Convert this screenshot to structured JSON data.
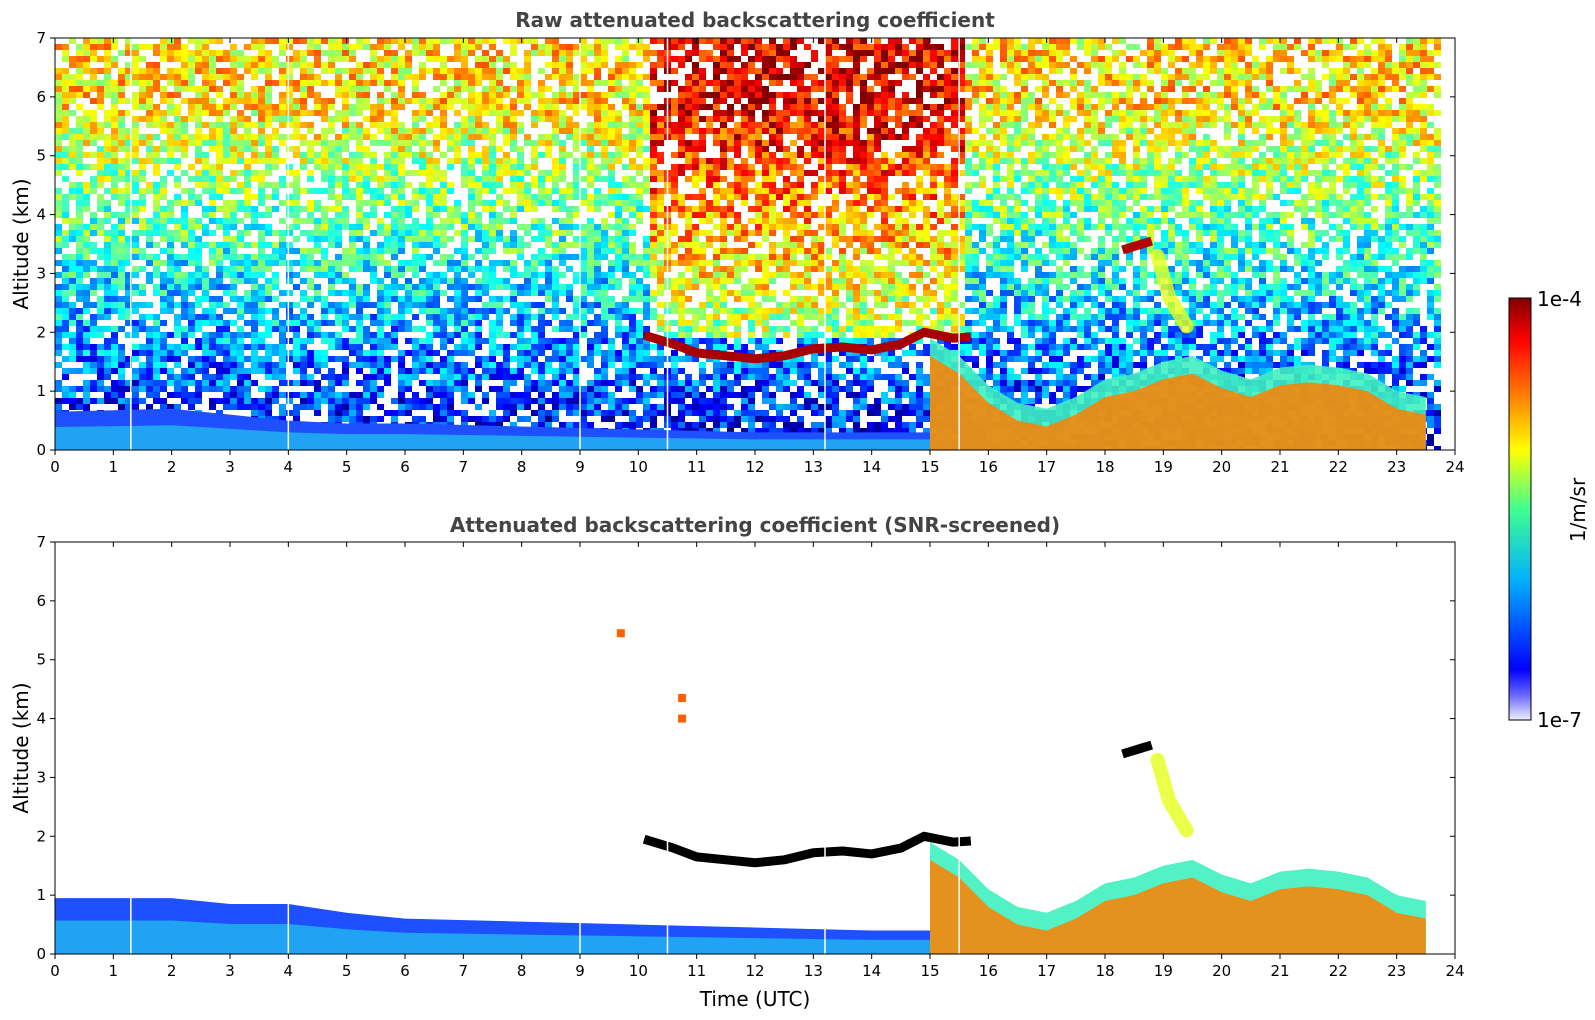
{
  "chart_data": [
    {
      "type": "heatmap",
      "title": "Raw attenuated backscattering coefficient",
      "xlabel": "",
      "ylabel": "Altitude (km)",
      "xlim": [
        0,
        24
      ],
      "ylim": [
        0,
        7
      ],
      "x_ticks": [
        "0",
        "1",
        "2",
        "3",
        "4",
        "5",
        "6",
        "7",
        "8",
        "9",
        "10",
        "11",
        "12",
        "13",
        "14",
        "15",
        "16",
        "17",
        "18",
        "19",
        "20",
        "21",
        "22",
        "23",
        "24"
      ],
      "y_ticks": [
        "0",
        "1",
        "2",
        "3",
        "4",
        "5",
        "6",
        "7"
      ],
      "data_end_time": 23.65,
      "screened": false,
      "noise_top_level": 0.55,
      "boundary_layer": [
        [
          0,
          0.65
        ],
        [
          2,
          0.7
        ],
        [
          3,
          0.6
        ],
        [
          4,
          0.5
        ],
        [
          5,
          0.45
        ],
        [
          6,
          0.45
        ],
        [
          8,
          0.4
        ],
        [
          10,
          0.35
        ],
        [
          12,
          0.3
        ],
        [
          14,
          0.3
        ],
        [
          15,
          0.3
        ]
      ],
      "gap_lines_time": [
        1.3,
        4.0,
        9.0,
        10.5,
        13.2,
        15.5
      ],
      "features": [
        {
          "kind": "cloud-layer",
          "path": [
            [
              10.1,
              1.95
            ],
            [
              10.6,
              1.8
            ],
            [
              11,
              1.65
            ],
            [
              11.5,
              1.6
            ],
            [
              12,
              1.55
            ],
            [
              12.5,
              1.6
            ],
            [
              13,
              1.72
            ],
            [
              13.5,
              1.75
            ],
            [
              14,
              1.7
            ],
            [
              14.5,
              1.8
            ],
            [
              14.9,
              2.0
            ],
            [
              15.4,
              1.9
            ],
            [
              15.7,
              1.92
            ]
          ],
          "level": 0.96
        },
        {
          "kind": "cloud-layer",
          "path": [
            [
              18.3,
              3.4
            ],
            [
              18.8,
              3.55
            ]
          ],
          "level": 0.95
        },
        {
          "kind": "aerosol-plume",
          "path": [
            [
              15.0,
              1.6
            ],
            [
              15.5,
              1.3
            ],
            [
              16.0,
              0.8
            ],
            [
              16.5,
              0.5
            ],
            [
              17.0,
              0.4
            ],
            [
              17.5,
              0.6
            ],
            [
              18.0,
              0.9
            ],
            [
              18.5,
              1.0
            ],
            [
              19.0,
              1.2
            ],
            [
              19.5,
              1.3
            ],
            [
              20.0,
              1.05
            ],
            [
              20.5,
              0.9
            ],
            [
              21.0,
              1.1
            ],
            [
              21.5,
              1.15
            ],
            [
              22.0,
              1.1
            ],
            [
              22.5,
              1.0
            ],
            [
              23.0,
              0.7
            ],
            [
              23.5,
              0.6
            ]
          ],
          "level": 0.75
        },
        {
          "kind": "plume",
          "path": [
            [
              18.9,
              3.3
            ],
            [
              19.1,
              2.6
            ],
            [
              19.4,
              2.1
            ]
          ],
          "level": 0.6
        }
      ]
    },
    {
      "type": "heatmap",
      "title": "Attenuated backscattering coefficient (SNR-screened)",
      "xlabel": "Time (UTC)",
      "ylabel": "Altitude (km)",
      "xlim": [
        0,
        24
      ],
      "ylim": [
        0,
        7
      ],
      "x_ticks": [
        "0",
        "1",
        "2",
        "3",
        "4",
        "5",
        "6",
        "7",
        "8",
        "9",
        "10",
        "11",
        "12",
        "13",
        "14",
        "15",
        "16",
        "17",
        "18",
        "19",
        "20",
        "21",
        "22",
        "23",
        "24"
      ],
      "y_ticks": [
        "0",
        "1",
        "2",
        "3",
        "4",
        "5",
        "6",
        "7"
      ],
      "data_end_time": 23.65,
      "screened": true,
      "noise_top_level": 0,
      "boundary_layer": [
        [
          0,
          0.95
        ],
        [
          2,
          0.95
        ],
        [
          3,
          0.85
        ],
        [
          4,
          0.85
        ],
        [
          5,
          0.7
        ],
        [
          6,
          0.6
        ],
        [
          8,
          0.55
        ],
        [
          10,
          0.5
        ],
        [
          12,
          0.45
        ],
        [
          14,
          0.4
        ],
        [
          15,
          0.4
        ]
      ],
      "gap_lines_time": [
        1.3,
        4.0,
        9.0,
        10.5,
        13.2,
        15.5
      ],
      "features": [
        {
          "kind": "cloud-layer",
          "path": [
            [
              10.1,
              1.95
            ],
            [
              10.6,
              1.8
            ],
            [
              11,
              1.65
            ],
            [
              11.5,
              1.6
            ],
            [
              12,
              1.55
            ],
            [
              12.5,
              1.6
            ],
            [
              13,
              1.72
            ],
            [
              13.5,
              1.75
            ],
            [
              14,
              1.7
            ],
            [
              14.5,
              1.8
            ],
            [
              14.9,
              2.0
            ],
            [
              15.4,
              1.9
            ],
            [
              15.7,
              1.92
            ]
          ],
          "level": 1.0
        },
        {
          "kind": "cloud-layer",
          "path": [
            [
              18.3,
              3.4
            ],
            [
              18.8,
              3.55
            ]
          ],
          "level": 1.0
        },
        {
          "kind": "aerosol-plume",
          "path": [
            [
              15.0,
              1.6
            ],
            [
              15.5,
              1.3
            ],
            [
              16.0,
              0.8
            ],
            [
              16.5,
              0.5
            ],
            [
              17.0,
              0.4
            ],
            [
              17.5,
              0.6
            ],
            [
              18.0,
              0.9
            ],
            [
              18.5,
              1.0
            ],
            [
              19.0,
              1.2
            ],
            [
              19.5,
              1.3
            ],
            [
              20.0,
              1.05
            ],
            [
              20.5,
              0.9
            ],
            [
              21.0,
              1.1
            ],
            [
              21.5,
              1.15
            ],
            [
              22.0,
              1.1
            ],
            [
              22.5,
              1.0
            ],
            [
              23.0,
              0.7
            ],
            [
              23.5,
              0.6
            ]
          ],
          "level": 0.75
        },
        {
          "kind": "plume",
          "path": [
            [
              18.9,
              3.3
            ],
            [
              19.1,
              2.6
            ],
            [
              19.4,
              2.1
            ]
          ],
          "level": 0.6
        },
        {
          "kind": "speck",
          "path": [
            [
              9.7,
              5.45
            ]
          ],
          "level": 0.78
        },
        {
          "kind": "speck",
          "path": [
            [
              10.75,
              4.35
            ],
            [
              10.75,
              4.0
            ]
          ],
          "level": 0.78
        }
      ]
    }
  ],
  "colorbar": {
    "label": "1/m/sr",
    "max_label": "1e-4",
    "min_label": "1e-7",
    "colormap": "jet",
    "stops": [
      "#ffffff",
      "#0000ff",
      "#00c0ff",
      "#40ff80",
      "#ffff00",
      "#ff8000",
      "#ff0000",
      "#800000"
    ]
  }
}
